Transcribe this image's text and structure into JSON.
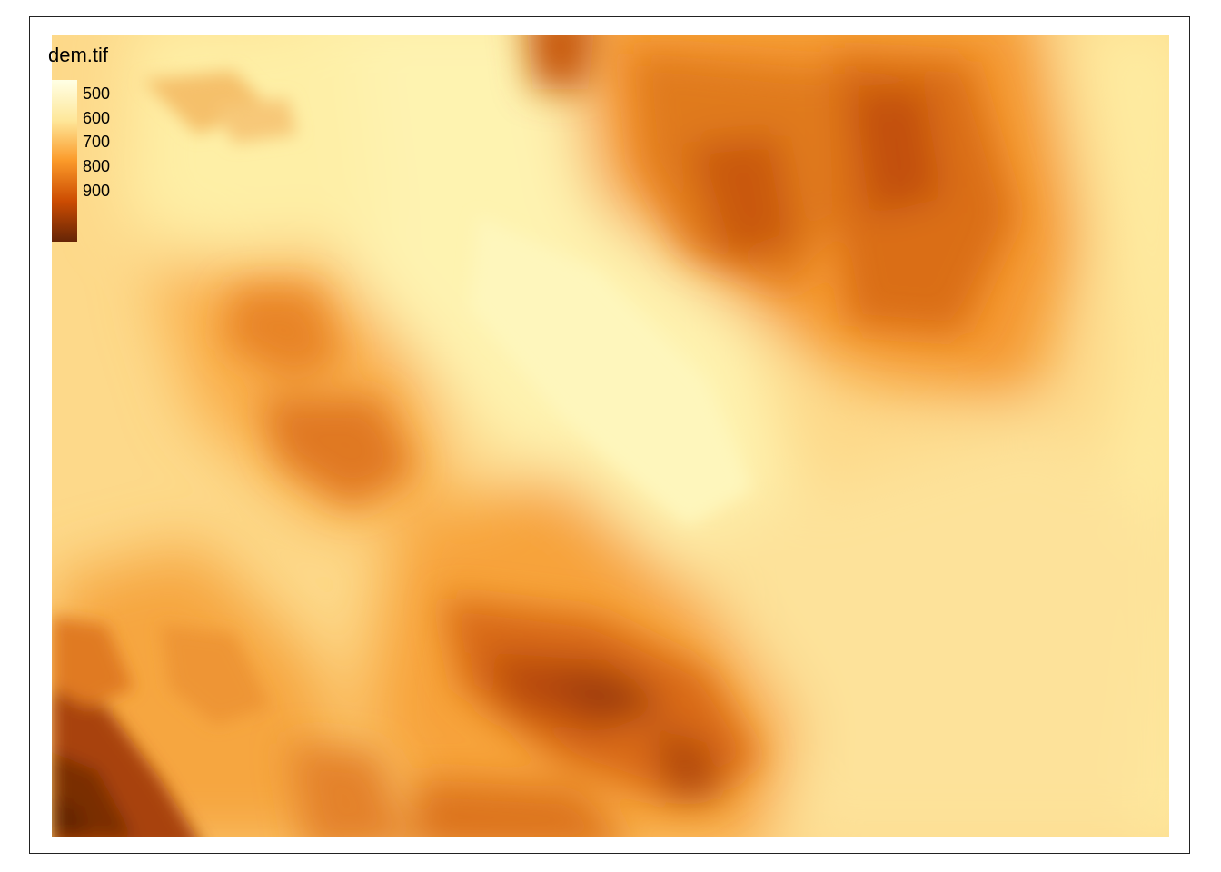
{
  "map": {
    "layer_name": "dem.tif",
    "color_scale": {
      "low_color": "#FFFFE5",
      "mid_light_color": "#FEF0A8",
      "mid_color": "#FB9A29",
      "high_color": "#CC4C02",
      "top_color": "#662506"
    },
    "legend": {
      "title": "dem.tif",
      "entries": [
        {
          "label": "500",
          "value": 500
        },
        {
          "label": "600",
          "value": 600
        },
        {
          "label": "700",
          "value": 700
        },
        {
          "label": "800",
          "value": 800
        },
        {
          "label": "900",
          "value": 900
        }
      ]
    }
  }
}
